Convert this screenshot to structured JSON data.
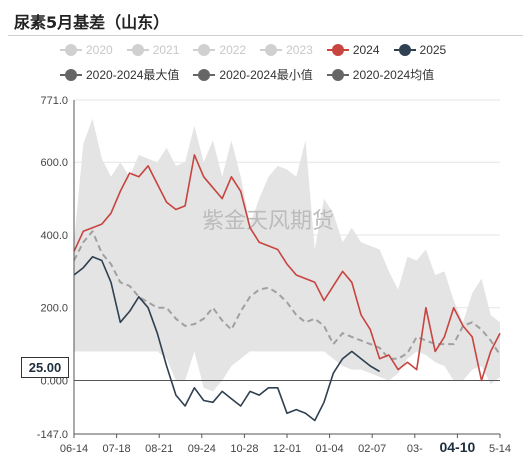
{
  "title": "尿素5月基差（山东）",
  "watermark": "紫金天风期货",
  "last_value_label": "25.00",
  "colors": {
    "y2024": "#c8443f",
    "y2025": "#2e4051",
    "band": "#e4e4e4",
    "mean": "#a0a0a0",
    "disabled": "#d0d0d0",
    "legend_grey": "#666666"
  },
  "legend": [
    {
      "label": "2020",
      "color": "#d0d0d0",
      "disabled": true
    },
    {
      "label": "2021",
      "color": "#d0d0d0",
      "disabled": true
    },
    {
      "label": "2022",
      "color": "#d0d0d0",
      "disabled": true
    },
    {
      "label": "2023",
      "color": "#d0d0d0",
      "disabled": true
    },
    {
      "label": "2024",
      "color": "#c8443f",
      "disabled": false
    },
    {
      "label": "2025",
      "color": "#2e4051",
      "disabled": false
    },
    {
      "label": "2020-2024最大值",
      "color": "#666666",
      "disabled": false
    },
    {
      "label": "2020-2024最小值",
      "color": "#666666",
      "disabled": false
    },
    {
      "label": "2020-2024均值",
      "color": "#666666",
      "disabled": false
    }
  ],
  "chart_data": {
    "type": "line",
    "title": "尿素5月基差（山东）",
    "y_ticks": [
      "771.0",
      "600.0",
      "400.0",
      "200.0",
      "0.000",
      "-147.0"
    ],
    "ylim": [
      -147,
      771
    ],
    "x_ticks": [
      "06-14",
      "07-18",
      "08-21",
      "09-24",
      "10-28",
      "12-01",
      "01-04",
      "02-07",
      "03-",
      "04-10",
      "5-14"
    ],
    "x_highlight": "04-10",
    "n_points": 47,
    "series": [
      {
        "name": "2020-2024最大值",
        "type": "band_upper",
        "values": [
          380,
          650,
          720,
          610,
          560,
          600,
          560,
          620,
          610,
          600,
          640,
          590,
          600,
          700,
          600,
          660,
          560,
          660,
          560,
          430,
          500,
          560,
          590,
          580,
          560,
          660,
          360,
          500,
          460,
          380,
          420,
          380,
          370,
          360,
          300,
          250,
          340,
          330,
          360,
          290,
          300,
          220,
          160,
          240,
          280,
          180,
          160
        ]
      },
      {
        "name": "2020-2024最小值",
        "type": "band_lower",
        "values": [
          80,
          80,
          80,
          80,
          80,
          80,
          80,
          80,
          80,
          80,
          60,
          0,
          0,
          80,
          -20,
          -30,
          0,
          40,
          60,
          80,
          80,
          80,
          80,
          80,
          80,
          80,
          80,
          80,
          60,
          40,
          30,
          30,
          20,
          10,
          0,
          20,
          60,
          80,
          70,
          50,
          40,
          0,
          0,
          30,
          40,
          -10,
          10
        ]
      },
      {
        "name": "2020-2024均值",
        "values": [
          330,
          380,
          410,
          350,
          320,
          270,
          260,
          230,
          215,
          200,
          200,
          170,
          150,
          155,
          170,
          200,
          165,
          140,
          190,
          230,
          250,
          255,
          240,
          215,
          180,
          160,
          170,
          150,
          100,
          130,
          120,
          110,
          100,
          90,
          60,
          60,
          75,
          120,
          110,
          100,
          100,
          100,
          150,
          160,
          140,
          110,
          70
        ]
      },
      {
        "name": "2024",
        "values": [
          355,
          410,
          420,
          430,
          460,
          520,
          570,
          560,
          590,
          540,
          490,
          470,
          480,
          620,
          560,
          530,
          500,
          560,
          520,
          420,
          380,
          370,
          360,
          320,
          290,
          280,
          270,
          220,
          260,
          300,
          270,
          180,
          140,
          60,
          70,
          30,
          50,
          30,
          200,
          80,
          120,
          200,
          150,
          120,
          0,
          80,
          130
        ]
      },
      {
        "name": "2025",
        "values": [
          290,
          310,
          340,
          330,
          270,
          160,
          190,
          230,
          200,
          130,
          40,
          -40,
          -70,
          -20,
          -55,
          -60,
          -30,
          -50,
          -70,
          -30,
          -40,
          -20,
          -20,
          -90,
          -80,
          -90,
          -110,
          -60,
          20,
          60,
          80,
          60,
          40,
          25
        ]
      }
    ]
  }
}
